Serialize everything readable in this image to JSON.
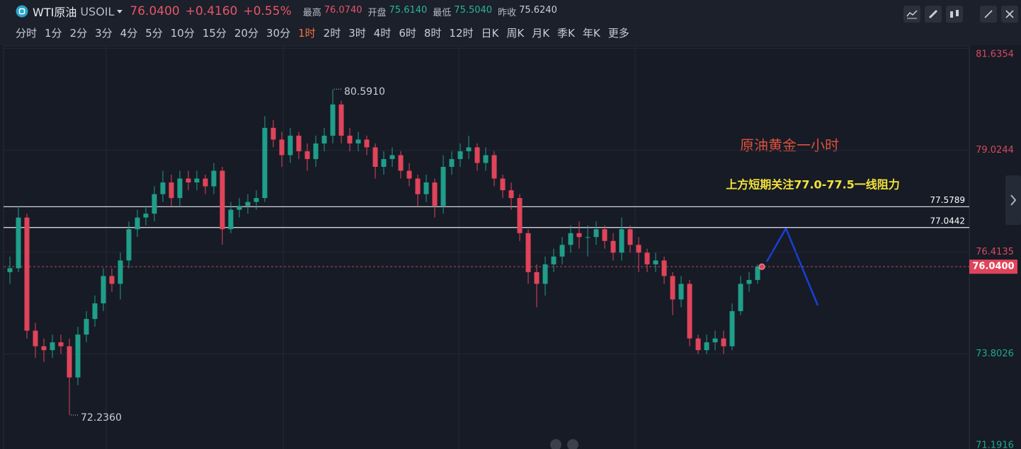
{
  "header": {
    "symbol_name": "WTI原油",
    "symbol_code": "USOIL",
    "price": "76.0400",
    "change": "+0.4160",
    "change_pct": "+0.55%",
    "stats": [
      {
        "label": "最高",
        "value": "76.0740",
        "tone": "up"
      },
      {
        "label": "开盘",
        "value": "75.6140",
        "tone": "down"
      },
      {
        "label": "最低",
        "value": "75.5040",
        "tone": "down"
      },
      {
        "label": "昨收",
        "value": "75.6240",
        "tone": "flat"
      }
    ]
  },
  "timeframes": [
    {
      "label": "分时"
    },
    {
      "label": "1分"
    },
    {
      "label": "2分"
    },
    {
      "label": "3分"
    },
    {
      "label": "4分"
    },
    {
      "label": "5分"
    },
    {
      "label": "10分"
    },
    {
      "label": "15分"
    },
    {
      "label": "20分"
    },
    {
      "label": "30分"
    },
    {
      "label": "1时",
      "active": true
    },
    {
      "label": "2时"
    },
    {
      "label": "3时"
    },
    {
      "label": "4时"
    },
    {
      "label": "6时"
    },
    {
      "label": "8时"
    },
    {
      "label": "12时"
    },
    {
      "label": "日K"
    },
    {
      "label": "周K"
    },
    {
      "label": "月K"
    },
    {
      "label": "季K"
    },
    {
      "label": "年K"
    },
    {
      "label": "更多"
    }
  ],
  "chart_data": {
    "type": "candlestick",
    "open": [
      75.9,
      76.0,
      77.3,
      74.4,
      74.0,
      73.9,
      74.1,
      74.0,
      73.2,
      74.3,
      74.7,
      75.1,
      75.8,
      75.6,
      76.2,
      77.0,
      77.3,
      77.4,
      77.9,
      78.2,
      77.8,
      78.3,
      78.2,
      78.3,
      78.1,
      78.5,
      77.0,
      77.5,
      77.6,
      77.7,
      77.8,
      79.6,
      79.3,
      78.9,
      79.4,
      79.0,
      78.8,
      79.2,
      79.4,
      80.2,
      79.4,
      79.2,
      79.3,
      79.1,
      78.6,
      78.8,
      78.9,
      78.5,
      78.3,
      77.9,
      78.2,
      77.6,
      78.6,
      78.8,
      79.0,
      79.1,
      78.7,
      78.9,
      78.3,
      78.0,
      77.8,
      76.9,
      75.9,
      75.6,
      76.1,
      76.3,
      76.6,
      76.9,
      76.8,
      76.8,
      77.0,
      76.7,
      76.4,
      77.0,
      76.6,
      76.4,
      76.1,
      76.2,
      75.8,
      75.2,
      75.6,
      74.2,
      73.9,
      74.1,
      74.2,
      74.0,
      74.9,
      75.6,
      75.7
    ],
    "high": [
      76.3,
      77.6,
      77.4,
      74.6,
      74.2,
      74.3,
      74.3,
      74.2,
      74.5,
      74.9,
      75.3,
      76.0,
      76.0,
      76.4,
      77.2,
      77.5,
      77.6,
      78.1,
      78.5,
      78.4,
      78.5,
      78.5,
      78.5,
      78.4,
      78.7,
      78.6,
      77.7,
      77.8,
      77.9,
      78.0,
      79.9,
      79.8,
      79.5,
      79.6,
      79.5,
      79.2,
      79.4,
      79.6,
      80.591,
      80.3,
      79.6,
      79.5,
      79.4,
      79.2,
      79.0,
      79.1,
      79.0,
      78.7,
      78.4,
      78.4,
      78.3,
      78.9,
      79.0,
      79.2,
      79.4,
      79.2,
      79.1,
      79.0,
      78.4,
      78.2,
      77.9,
      77.0,
      76.1,
      76.3,
      76.5,
      76.8,
      77.1,
      77.2,
      77.1,
      77.2,
      77.1,
      76.9,
      77.3,
      77.1,
      76.8,
      76.5,
      76.4,
      76.3,
      75.9,
      75.8,
      75.7,
      74.3,
      74.3,
      74.4,
      74.4,
      75.1,
      75.8,
      75.9,
      76.1
    ],
    "low": [
      75.6,
      75.9,
      74.2,
      73.7,
      73.6,
      73.7,
      73.8,
      72.236,
      73.0,
      74.1,
      74.5,
      74.9,
      75.4,
      75.2,
      76.0,
      76.8,
      77.1,
      77.2,
      77.7,
      77.6,
      77.6,
      78.0,
      78.0,
      77.9,
      77.9,
      76.6,
      76.9,
      77.3,
      77.4,
      77.5,
      77.7,
      79.1,
      78.6,
      78.7,
      78.8,
      78.5,
      78.6,
      79.0,
      79.2,
      79.2,
      79.0,
      79.0,
      78.9,
      78.3,
      78.4,
      78.6,
      78.3,
      78.1,
      77.6,
      77.7,
      77.3,
      77.4,
      78.4,
      78.6,
      78.8,
      78.5,
      78.5,
      78.1,
      77.8,
      77.5,
      76.7,
      75.6,
      75.0,
      75.3,
      75.9,
      76.1,
      76.4,
      76.5,
      76.3,
      76.6,
      76.5,
      76.2,
      76.2,
      76.4,
      75.9,
      75.9,
      75.9,
      75.6,
      74.8,
      75.0,
      74.0,
      73.8,
      73.8,
      73.9,
      73.8,
      73.9,
      74.8,
      75.4,
      75.6
    ],
    "close": [
      76.0,
      77.3,
      74.4,
      74.0,
      73.9,
      74.1,
      74.0,
      73.2,
      74.3,
      74.7,
      75.1,
      75.8,
      75.6,
      76.2,
      77.0,
      77.3,
      77.4,
      77.9,
      78.2,
      77.8,
      78.3,
      78.2,
      78.3,
      78.1,
      78.5,
      77.0,
      77.5,
      77.6,
      77.7,
      77.8,
      79.6,
      79.3,
      78.9,
      79.4,
      79.0,
      78.8,
      79.2,
      79.4,
      80.2,
      79.4,
      79.2,
      79.3,
      79.1,
      78.6,
      78.8,
      78.9,
      78.5,
      78.3,
      77.9,
      78.2,
      77.6,
      78.6,
      78.8,
      79.0,
      79.1,
      78.7,
      78.9,
      78.3,
      78.0,
      77.8,
      76.9,
      75.9,
      75.6,
      76.1,
      76.3,
      76.6,
      76.9,
      76.8,
      76.8,
      77.0,
      76.7,
      76.4,
      77.0,
      76.6,
      76.4,
      76.1,
      76.2,
      75.8,
      75.2,
      75.6,
      74.2,
      73.9,
      74.1,
      74.2,
      74.0,
      74.9,
      75.6,
      75.7,
      76.04
    ],
    "up_color": "#1f9e89",
    "down_color": "#e0445a",
    "ylim": [
      71.0,
      81.7
    ],
    "yticks": [
      81.6354,
      79.0244,
      76.4135,
      73.8026,
      71.1916
    ],
    "grid": true,
    "price_lines": [
      77.5789,
      77.0442
    ],
    "last_price": {
      "value": 76.04,
      "label": "76.0400"
    },
    "high_marker": {
      "value": 80.591,
      "label": "80.5910"
    },
    "low_marker": {
      "value": 72.236,
      "label": "72.2360"
    },
    "annotations": [
      "原油黄金一小时",
      "上方短期关注77.0-77.5一线阻力"
    ]
  }
}
